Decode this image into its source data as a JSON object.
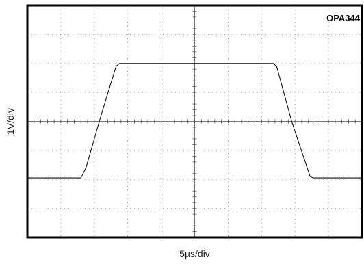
{
  "chart_data": {
    "type": "line",
    "title": "",
    "device_label": "OPA344",
    "xlabel": "5µs/div",
    "ylabel": "1V/div",
    "grid": true,
    "x_divisions": 10,
    "y_divisions": 8,
    "xlim": [
      0,
      10
    ],
    "ylim": [
      -4,
      4
    ],
    "series": [
      {
        "x": [
          0,
          1.6,
          1.75,
          1.95,
          2.2,
          2.65,
          2.75,
          3.5,
          5.0,
          6.5,
          7.35,
          7.45,
          7.9,
          8.45,
          8.55,
          9.3,
          10
        ],
        "y": [
          -1.95,
          -1.95,
          -1.6,
          -0.8,
          0.2,
          1.9,
          2.0,
          2.0,
          2.0,
          2.0,
          2.0,
          1.9,
          0.0,
          -1.9,
          -1.95,
          -1.95,
          -1.95
        ]
      }
    ],
    "colors": {
      "trace": "#111111",
      "grid": "#808080",
      "frame": "#000000"
    }
  }
}
